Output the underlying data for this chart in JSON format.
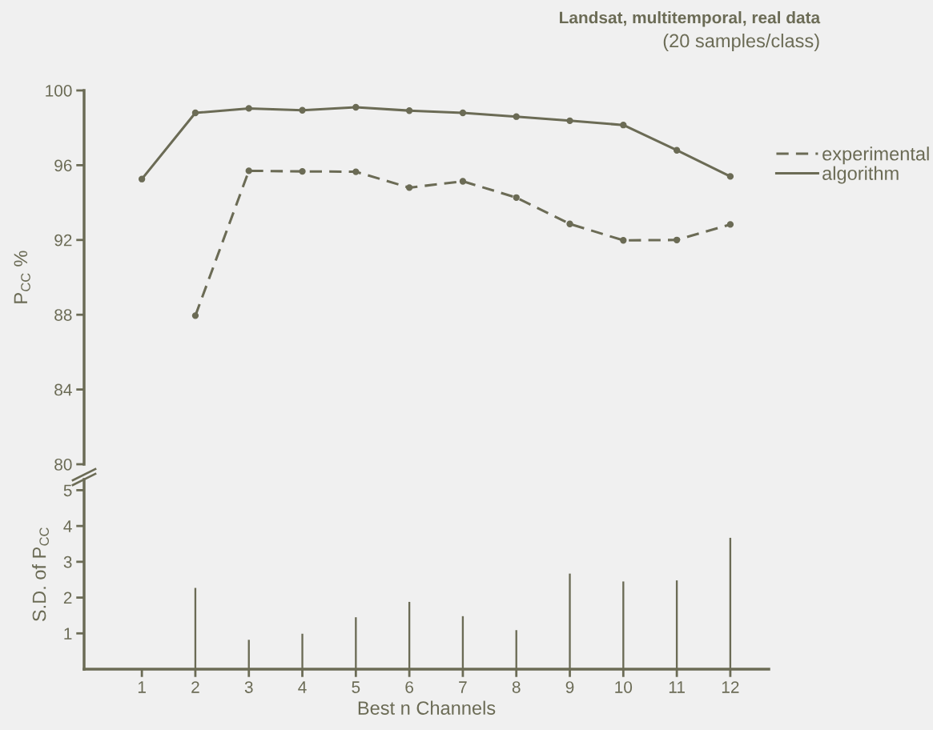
{
  "chart_data": [
    {
      "type": "line",
      "title": "Landsat, multitemporal, real data",
      "subtitle": "(20 samples/class)",
      "ylabel": "P$_{CC}$ %",
      "x": [
        1,
        2,
        3,
        4,
        5,
        6,
        7,
        8,
        9,
        10,
        11,
        12
      ],
      "series": [
        {
          "name": "experimental",
          "color": "#6b6b55",
          "line_style": "dashed",
          "values": [
            null,
            87.95,
            95.7,
            95.67,
            95.65,
            94.8,
            95.14,
            94.27,
            92.86,
            91.98,
            92.0,
            92.83
          ]
        },
        {
          "name": "algorithm",
          "color": "#6b6b55",
          "line_style": "solid",
          "values": [
            95.26,
            98.8,
            99.04,
            98.94,
            99.1,
            98.92,
            98.8,
            98.6,
            98.38,
            98.15,
            96.8,
            95.4
          ]
        }
      ],
      "marker": "circle",
      "ylim": [
        80,
        100
      ],
      "yticks": [
        80,
        84,
        88,
        92,
        96,
        100
      ],
      "tick_labels": "y",
      "legend": "right",
      "grid": false
    },
    {
      "type": "bar",
      "xlabel": "Best n Channels",
      "ylabel": "S.D. of P$_{CC}$",
      "x": [
        2,
        3,
        4,
        5,
        6,
        7,
        8,
        9,
        10,
        11,
        12
      ],
      "color": "#6b6b55",
      "values": [
        2.27,
        0.82,
        0.99,
        1.45,
        1.88,
        1.48,
        1.09,
        2.67,
        2.45,
        2.48,
        3.67
      ],
      "xlim": [
        -0.08,
        12.72
      ],
      "xticks": [
        1,
        2,
        3,
        4,
        5,
        6,
        7,
        8,
        9,
        10,
        11,
        12
      ],
      "ylim": [
        0,
        5.3
      ],
      "yticks": [
        1,
        2,
        3,
        4,
        5
      ],
      "grid": false
    }
  ]
}
